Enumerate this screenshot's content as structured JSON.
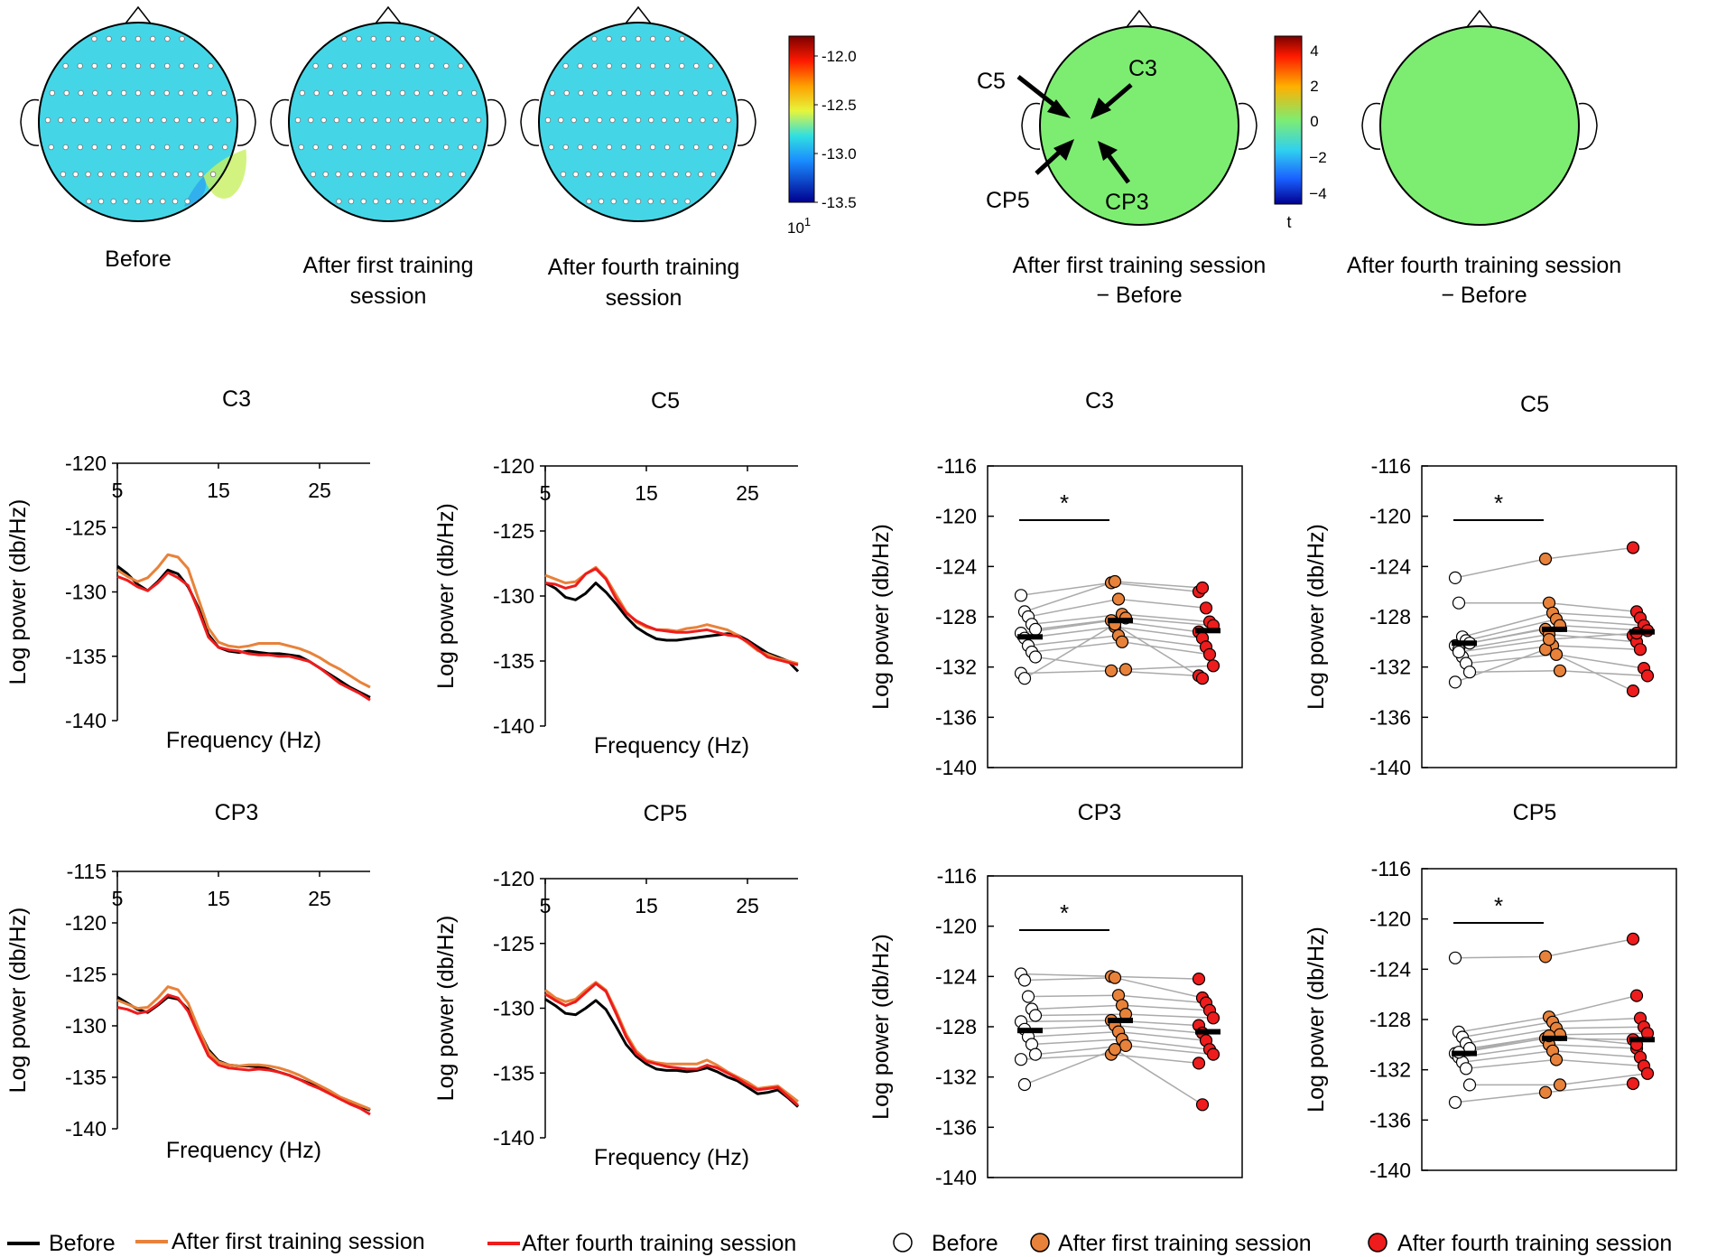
{
  "topomaps": {
    "power_maps": [
      {
        "caption_lines": [
          "Before"
        ],
        "pattern": "before"
      },
      {
        "caption_lines": [
          "After first training",
          "session"
        ],
        "pattern": "first"
      },
      {
        "caption_lines": [
          "After fourth training",
          "session"
        ],
        "pattern": "fourth"
      }
    ],
    "power_colorbar": {
      "ticks": [
        "-12.0",
        "-12.5",
        "-13.0",
        "-13.5"
      ],
      "exponent_label": "10",
      "exponent": "1"
    },
    "t_maps": [
      {
        "caption_lines": [
          "After first training session",
          "− Before"
        ],
        "has_cluster": true,
        "annotations": [
          "C5",
          "C3",
          "CP5",
          "CP3"
        ]
      },
      {
        "caption_lines": [
          "After fourth training session",
          "− Before"
        ],
        "has_cluster": false,
        "annotations": []
      }
    ],
    "t_colorbar": {
      "ticks": [
        "4",
        "2",
        "0",
        "−2",
        "−4"
      ],
      "label": "t"
    }
  },
  "colors": {
    "before": "#000000",
    "after_first": "#e8823a",
    "after_fourth": "#ee1c1c",
    "gray_line": "#aaaaaa",
    "map_green": "#7ded72"
  },
  "chart_data": [
    {
      "type": "line",
      "title": "C3",
      "xlabel": "Frequency (Hz)",
      "ylabel": "Log power (db/Hz)",
      "xlim": [
        5,
        30
      ],
      "ylim": [
        -140,
        -120
      ],
      "xticks": [
        "5",
        "15",
        "25"
      ],
      "yticks": [
        "-120",
        "-125",
        "-130",
        "-135",
        "-140"
      ],
      "x": [
        5,
        6,
        7,
        8,
        9,
        10,
        11,
        12,
        13,
        14,
        15,
        16,
        17,
        18,
        19,
        20,
        21,
        22,
        23,
        24,
        25,
        26,
        27,
        28,
        29,
        30
      ],
      "series": [
        {
          "name": "Before",
          "values": [
            -128,
            -128.6,
            -129.4,
            -129.9,
            -129.2,
            -128.3,
            -128.6,
            -129.6,
            -131.2,
            -133.3,
            -134.3,
            -134.6,
            -134.7,
            -134.6,
            -134.7,
            -134.8,
            -134.8,
            -134.9,
            -135.0,
            -135.4,
            -135.9,
            -136.4,
            -136.9,
            -137.4,
            -137.8,
            -138.2
          ]
        },
        {
          "name": "After first training session",
          "values": [
            -128.3,
            -128.8,
            -129.2,
            -128.9,
            -128.1,
            -127.1,
            -127.3,
            -128.2,
            -130.5,
            -132.8,
            -133.9,
            -134.2,
            -134.3,
            -134.2,
            -134.0,
            -134.0,
            -134.0,
            -134.2,
            -134.4,
            -134.7,
            -135.1,
            -135.6,
            -136.0,
            -136.5,
            -137.0,
            -137.4
          ]
        },
        {
          "name": "After fourth training session",
          "values": [
            -128.8,
            -129.1,
            -129.6,
            -129.9,
            -129.3,
            -128.5,
            -128.9,
            -129.5,
            -131.4,
            -133.5,
            -134.3,
            -134.5,
            -134.6,
            -134.8,
            -134.9,
            -134.9,
            -135.0,
            -135.0,
            -135.2,
            -135.4,
            -135.9,
            -136.5,
            -137.1,
            -137.5,
            -137.9,
            -138.4
          ]
        }
      ]
    },
    {
      "type": "line",
      "title": "C5",
      "xlabel": "Frequency (Hz)",
      "ylabel": "Log power (db/Hz)",
      "xlim": [
        5,
        30
      ],
      "ylim": [
        -140,
        -120
      ],
      "xticks": [
        "5",
        "15",
        "25"
      ],
      "yticks": [
        "-120",
        "-125",
        "-130",
        "-135",
        "-140"
      ],
      "x": [
        5,
        6,
        7,
        8,
        9,
        10,
        11,
        12,
        13,
        14,
        15,
        16,
        17,
        18,
        19,
        20,
        21,
        22,
        23,
        24,
        25,
        26,
        27,
        28,
        29,
        30
      ],
      "series": [
        {
          "name": "Before",
          "values": [
            -129,
            -129.4,
            -130.1,
            -130.3,
            -129.8,
            -129.0,
            -129.7,
            -130.6,
            -131.6,
            -132.4,
            -132.9,
            -133.3,
            -133.4,
            -133.4,
            -133.3,
            -133.2,
            -133.1,
            -133.0,
            -132.9,
            -133.0,
            -133.4,
            -133.9,
            -134.4,
            -134.7,
            -135.0,
            -135.8
          ]
        },
        {
          "name": "After first training session",
          "values": [
            -128.4,
            -128.7,
            -129.0,
            -128.9,
            -128.3,
            -127.8,
            -128.6,
            -129.9,
            -131.2,
            -132.0,
            -132.4,
            -132.6,
            -132.6,
            -132.7,
            -132.5,
            -132.4,
            -132.2,
            -132.4,
            -132.6,
            -133.0,
            -133.6,
            -134.2,
            -134.5,
            -134.8,
            -135.0,
            -135.2
          ]
        },
        {
          "name": "After fourth training session",
          "values": [
            -129.0,
            -129.1,
            -129.4,
            -129.2,
            -128.3,
            -127.9,
            -128.7,
            -130.2,
            -131.3,
            -131.9,
            -132.3,
            -132.6,
            -132.7,
            -132.8,
            -132.8,
            -132.7,
            -132.6,
            -132.8,
            -133.0,
            -133.1,
            -133.5,
            -134.1,
            -134.7,
            -134.9,
            -135.1,
            -135.3
          ]
        }
      ]
    },
    {
      "type": "line",
      "title": "CP3",
      "xlabel": "Frequency (Hz)",
      "ylabel": "Log power (db/Hz)",
      "xlim": [
        5,
        30
      ],
      "ylim": [
        -140,
        -115
      ],
      "xticks": [
        "5",
        "15",
        "25"
      ],
      "yticks": [
        "-115",
        "-120",
        "-125",
        "-130",
        "-135",
        "-140"
      ],
      "x": [
        5,
        6,
        7,
        8,
        9,
        10,
        11,
        12,
        13,
        14,
        15,
        16,
        17,
        18,
        19,
        20,
        21,
        22,
        23,
        24,
        25,
        26,
        27,
        28,
        29,
        30
      ],
      "series": [
        {
          "name": "Before",
          "values": [
            -127.2,
            -127.8,
            -128.4,
            -128.7,
            -128.0,
            -127.2,
            -127.4,
            -128.4,
            -130.3,
            -132.3,
            -133.4,
            -133.8,
            -133.9,
            -133.9,
            -134.0,
            -134.2,
            -134.5,
            -134.8,
            -135.2,
            -135.6,
            -136.0,
            -136.5,
            -137.0,
            -137.5,
            -137.8,
            -138.2
          ]
        },
        {
          "name": "After first training session",
          "values": [
            -127.5,
            -127.9,
            -128.3,
            -128.2,
            -127.3,
            -126.2,
            -126.5,
            -127.8,
            -130.2,
            -132.5,
            -133.5,
            -133.8,
            -133.9,
            -133.8,
            -133.8,
            -133.9,
            -134.1,
            -134.4,
            -134.8,
            -135.3,
            -135.8,
            -136.3,
            -136.9,
            -137.3,
            -137.7,
            -138.1
          ]
        },
        {
          "name": "After fourth training session",
          "values": [
            -128.2,
            -128.4,
            -128.8,
            -128.6,
            -127.9,
            -127.0,
            -127.3,
            -128.6,
            -130.8,
            -132.9,
            -133.8,
            -134.1,
            -134.2,
            -134.3,
            -134.2,
            -134.3,
            -134.5,
            -134.8,
            -135.2,
            -135.7,
            -136.1,
            -136.6,
            -137.1,
            -137.6,
            -138.0,
            -138.6
          ]
        }
      ]
    },
    {
      "type": "line",
      "title": "CP5",
      "xlabel": "Frequency (Hz)",
      "ylabel": "Log power (db/Hz)",
      "xlim": [
        5,
        30
      ],
      "ylim": [
        -140,
        -120
      ],
      "xticks": [
        "5",
        "15",
        "25"
      ],
      "yticks": [
        "-120",
        "-125",
        "-130",
        "-135",
        "-140"
      ],
      "x": [
        5,
        6,
        7,
        8,
        9,
        10,
        11,
        12,
        13,
        14,
        15,
        16,
        17,
        18,
        19,
        20,
        21,
        22,
        23,
        24,
        25,
        26,
        27,
        28,
        29,
        30
      ],
      "series": [
        {
          "name": "Before",
          "values": [
            -129.3,
            -129.8,
            -130.4,
            -130.5,
            -130.0,
            -129.4,
            -130.1,
            -131.4,
            -132.8,
            -133.7,
            -134.3,
            -134.7,
            -134.8,
            -134.8,
            -134.9,
            -134.8,
            -134.6,
            -134.9,
            -135.3,
            -135.6,
            -136.1,
            -136.6,
            -136.5,
            -136.3,
            -136.9,
            -137.6
          ]
        },
        {
          "name": "After first training session",
          "values": [
            -128.6,
            -129.2,
            -129.5,
            -129.3,
            -128.6,
            -128.0,
            -128.6,
            -130.2,
            -132.0,
            -133.3,
            -134.0,
            -134.2,
            -134.3,
            -134.3,
            -134.3,
            -134.3,
            -134.0,
            -134.4,
            -134.9,
            -135.3,
            -135.7,
            -136.2,
            -136.1,
            -136.0,
            -136.6,
            -137.2
          ]
        },
        {
          "name": "After fourth training session",
          "values": [
            -128.9,
            -129.4,
            -129.8,
            -129.5,
            -128.8,
            -128.1,
            -128.7,
            -130.4,
            -132.2,
            -133.5,
            -134.1,
            -134.3,
            -134.5,
            -134.6,
            -134.7,
            -134.7,
            -134.4,
            -134.6,
            -135.0,
            -135.4,
            -135.9,
            -136.3,
            -136.2,
            -136.1,
            -136.8,
            -137.5
          ]
        }
      ]
    },
    {
      "type": "scatter",
      "title": "C3",
      "ylabel": "Log power (db/Hz)",
      "ylim": [
        -140,
        -116
      ],
      "yticks": [
        "-116",
        "-120",
        "-124",
        "-128",
        "-132",
        "-136",
        "-140"
      ],
      "significance": "*",
      "groups": [
        "Before",
        "After first training session",
        "After fourth training session"
      ],
      "means": [
        -129.6,
        -128.3,
        -129.1
      ],
      "subjects": [
        [
          -126.3,
          -125.3,
          -126.0
        ],
        [
          -127.6,
          -125.2,
          -125.7
        ],
        [
          -128.0,
          -126.6,
          -127.3
        ],
        [
          -128.6,
          -127.8,
          -128.4
        ],
        [
          -129.0,
          -128.1,
          -128.7
        ],
        [
          -129.3,
          -128.3,
          -129.2
        ],
        [
          -129.7,
          -128.8,
          -129.7
        ],
        [
          -130.3,
          -129.5,
          -130.4
        ],
        [
          -130.8,
          -130.0,
          -131.0
        ],
        [
          -131.2,
          -132.2,
          -131.9
        ],
        [
          -132.5,
          -132.3,
          -132.7
        ],
        [
          -132.9,
          -128.6,
          -132.9
        ]
      ]
    },
    {
      "type": "scatter",
      "title": "C5",
      "ylabel": "Log power (db/Hz)",
      "ylim": [
        -140,
        -116
      ],
      "yticks": [
        "-116",
        "-120",
        "-124",
        "-128",
        "-132",
        "-136",
        "-140"
      ],
      "significance": "*",
      "groups": [
        "Before",
        "After first training session",
        "After fourth training session"
      ],
      "means": [
        -130.1,
        -129.0,
        -129.2
      ],
      "subjects": [
        [
          -124.9,
          -123.4,
          -122.5
        ],
        [
          -126.9,
          -126.9,
          -127.6
        ],
        [
          -129.6,
          -127.7,
          -128.1
        ],
        [
          -129.9,
          -128.2,
          -128.7
        ],
        [
          -130.1,
          -128.7,
          -129.1
        ],
        [
          -130.3,
          -129.0,
          -129.5
        ],
        [
          -130.6,
          -129.4,
          -130.0
        ],
        [
          -131.2,
          -130.3,
          -130.6
        ],
        [
          -131.7,
          -131.0,
          -132.1
        ],
        [
          -132.4,
          -132.3,
          -132.7
        ],
        [
          -133.2,
          -130.6,
          -133.9
        ],
        [
          -130.8,
          -129.8,
          -129.3
        ]
      ]
    },
    {
      "type": "scatter",
      "title": "CP3",
      "ylabel": "Log power (db/Hz)",
      "ylim": [
        -140,
        -116
      ],
      "yticks": [
        "-116",
        "-120",
        "-124",
        "-128",
        "-132",
        "-136",
        "-140"
      ],
      "significance": "*",
      "groups": [
        "Before",
        "After first training session",
        "After fourth training session"
      ],
      "means": [
        -128.3,
        -127.5,
        -128.4
      ],
      "subjects": [
        [
          -123.8,
          -124.0,
          -124.2
        ],
        [
          -124.3,
          -124.1,
          -125.7
        ],
        [
          -125.6,
          -125.5,
          -126.1
        ],
        [
          -126.6,
          -126.3,
          -126.7
        ],
        [
          -127.1,
          -127.0,
          -127.3
        ],
        [
          -127.6,
          -127.5,
          -127.9
        ],
        [
          -128.2,
          -127.9,
          -128.5
        ],
        [
          -128.8,
          -128.4,
          -129.1
        ],
        [
          -129.4,
          -129.0,
          -129.8
        ],
        [
          -130.2,
          -129.5,
          -130.2
        ],
        [
          -130.6,
          -130.2,
          -130.9
        ],
        [
          -132.6,
          -129.8,
          -134.2
        ]
      ]
    },
    {
      "type": "scatter",
      "title": "CP5",
      "ylabel": "Log power (db/Hz)",
      "ylim": [
        -140,
        -116
      ],
      "yticks": [
        "-116",
        "-120",
        "-124",
        "-128",
        "-132",
        "-136",
        "-140"
      ],
      "significance": "*",
      "groups": [
        "Before",
        "After first training session",
        "After fourth training session"
      ],
      "means": [
        -130.7,
        -129.5,
        -129.6
      ],
      "subjects": [
        [
          -123.1,
          -123.0,
          -121.6
        ],
        [
          -129.0,
          -127.8,
          -126.1
        ],
        [
          -129.4,
          -128.2,
          -127.9
        ],
        [
          -129.9,
          -128.7,
          -128.6
        ],
        [
          -130.3,
          -129.2,
          -129.1
        ],
        [
          -130.7,
          -129.5,
          -129.6
        ],
        [
          -131.0,
          -130.0,
          -130.3
        ],
        [
          -131.4,
          -130.5,
          -131.0
        ],
        [
          -131.9,
          -131.2,
          -131.7
        ],
        [
          -133.2,
          -133.2,
          -132.3
        ],
        [
          -134.6,
          -133.8,
          -133.1
        ],
        [
          -130.6,
          -129.3,
          -130.0
        ]
      ]
    }
  ],
  "legends": {
    "lines": [
      {
        "label": "Before",
        "color_key": "before"
      },
      {
        "label": "After first training session",
        "color_key": "after_first"
      },
      {
        "label": "After fourth training session",
        "color_key": "after_fourth"
      }
    ],
    "points": [
      {
        "label": "Before",
        "color_key": "before"
      },
      {
        "label": "After first training session",
        "color_key": "after_first"
      },
      {
        "label": "After fourth training session",
        "color_key": "after_fourth"
      }
    ]
  }
}
